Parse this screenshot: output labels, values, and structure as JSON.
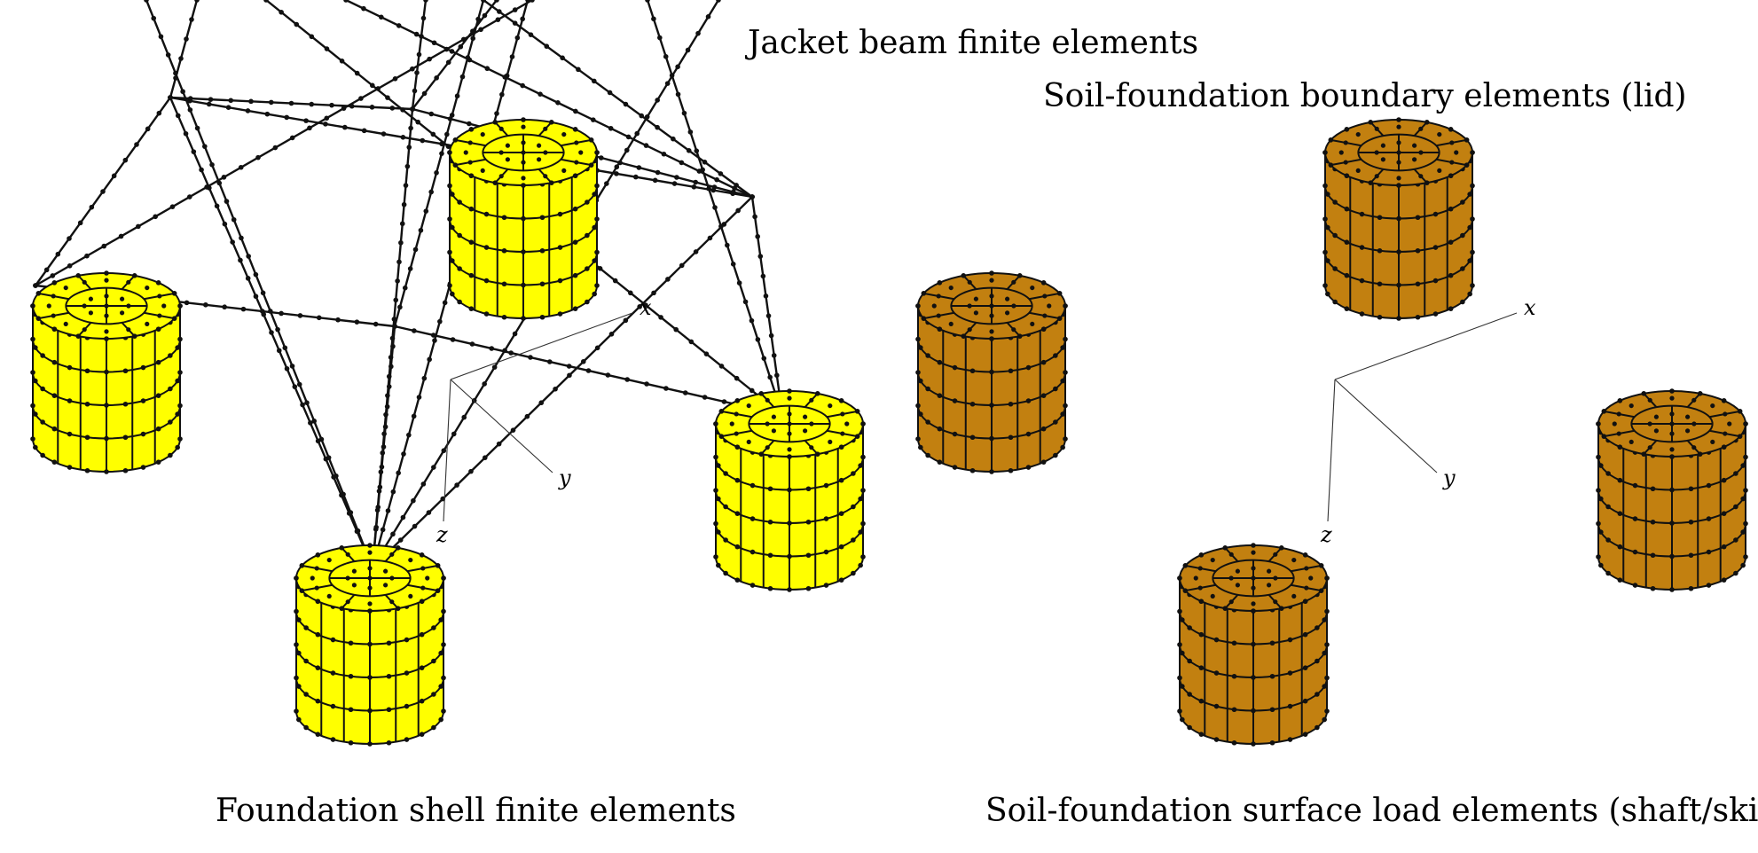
{
  "labels": {
    "jacket_beam": "Jacket beam finite elements",
    "lid": "Soil-foundation boundary elements (lid)",
    "shell": "Foundation shell finite elements",
    "skirt": "Soil-foundation surface load elements (shaft/skirt)"
  },
  "axes": {
    "x": "x",
    "y": "y",
    "z": "z"
  },
  "colors": {
    "shell_fill": "#ffff00",
    "soil_fill": "#c28010",
    "line": "#111111"
  }
}
